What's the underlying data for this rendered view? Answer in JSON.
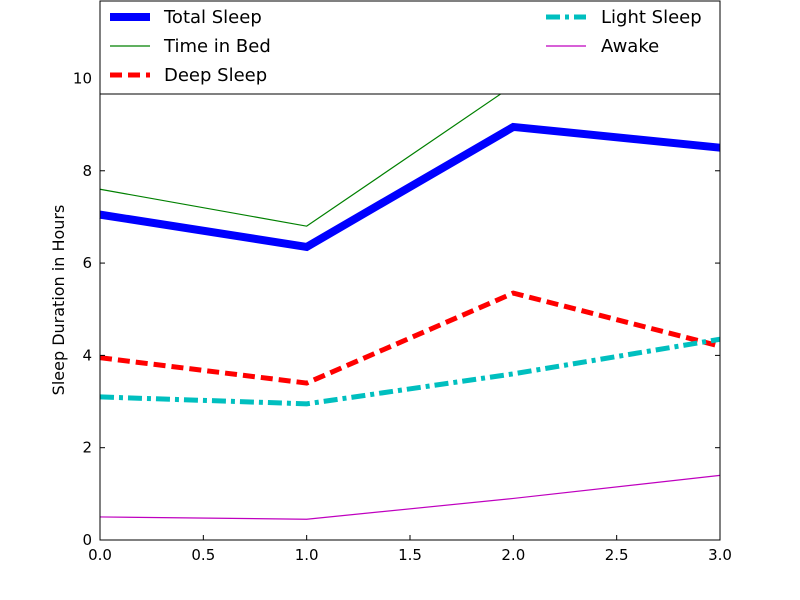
{
  "chart_data": {
    "type": "line",
    "title": "",
    "xlabel": "",
    "ylabel": "Sleep Duration in Hours",
    "x": [
      0,
      1,
      2,
      3
    ],
    "xlim": [
      0,
      3
    ],
    "ylim": [
      0,
      10.4
    ],
    "xticks": [
      0,
      0.5,
      1,
      1.5,
      2,
      2.5,
      3
    ],
    "xtick_labels": [
      "0.0",
      "0.5",
      "1.0",
      "1.5",
      "2.0",
      "2.5",
      "3.0"
    ],
    "yticks": [
      0,
      2,
      4,
      6,
      8,
      10
    ],
    "ytick_labels": [
      "0",
      "2",
      "4",
      "6",
      "8",
      "10"
    ],
    "grid": false,
    "legend_position": "top",
    "series": [
      {
        "name": "Total Sleep",
        "values": [
          7.05,
          6.35,
          8.95,
          8.5
        ],
        "color": "#0000ff",
        "style": "solid-thick"
      },
      {
        "name": "Time in Bed",
        "values": [
          7.6,
          6.8,
          9.85,
          9.95
        ],
        "color": "#008000",
        "style": "solid-thin"
      },
      {
        "name": "Deep Sleep",
        "values": [
          3.95,
          3.4,
          5.35,
          4.2
        ],
        "color": "#ff0000",
        "style": "dashed"
      },
      {
        "name": "Light Sleep",
        "values": [
          3.1,
          2.95,
          3.6,
          4.35
        ],
        "color": "#00bfbf",
        "style": "dashdot"
      },
      {
        "name": "Awake",
        "values": [
          0.5,
          0.45,
          0.9,
          1.4
        ],
        "color": "#bf00bf",
        "style": "solid-thin"
      }
    ]
  }
}
